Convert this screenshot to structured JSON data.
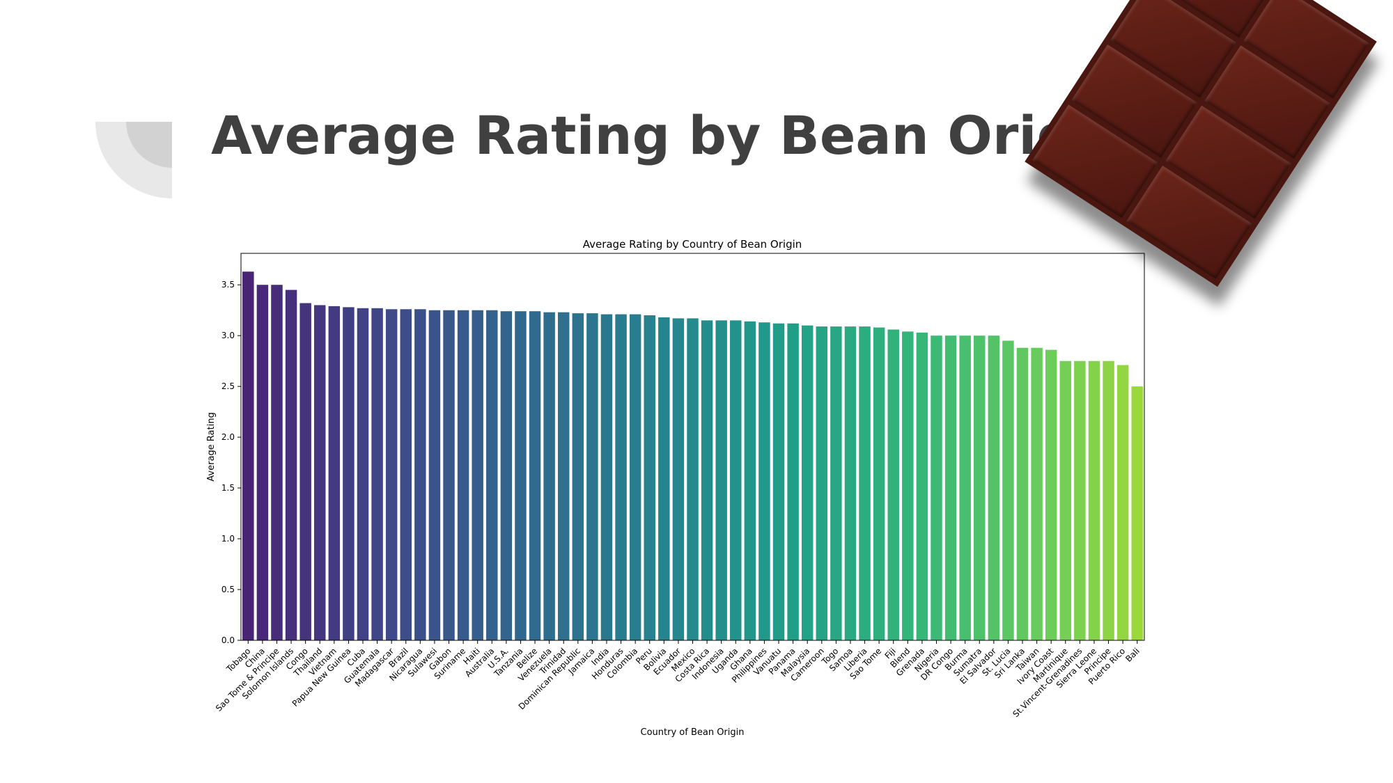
{
  "slide": {
    "title": "Average Rating by Bean Origin"
  },
  "chart_data": {
    "type": "bar",
    "title": "Average Rating by Country of Bean Origin",
    "xlabel": "Country of Bean Origin",
    "ylabel": "Average Rating",
    "ylim": [
      0,
      3.81
    ],
    "yticks": [
      "0.0",
      "0.5",
      "1.0",
      "1.5",
      "2.0",
      "2.5",
      "3.0",
      "3.5"
    ],
    "palette": "viridis",
    "categories": [
      "Tobago",
      "China",
      "Sao Tome & Principe",
      "Solomon Islands",
      "Congo",
      "Thailand",
      "Vietnam",
      "Papua New Guinea",
      "Cuba",
      "Guatemala",
      "Madagascar",
      "Brazil",
      "Nicaragua",
      "Sulawesi",
      "Gabon",
      "Suriname",
      "Haiti",
      "Australia",
      "U.S.A.",
      "Tanzania",
      "Belize",
      "Venezuela",
      "Trinidad",
      "Dominican Republic",
      "Jamaica",
      "India",
      "Honduras",
      "Colombia",
      "Peru",
      "Bolivia",
      "Ecuador",
      "Mexico",
      "Costa Rica",
      "Indonesia",
      "Uganda",
      "Ghana",
      "Philippines",
      "Vanuatu",
      "Panama",
      "Malaysia",
      "Cameroon",
      "Togo",
      "Samoa",
      "Liberia",
      "Sao Tome",
      "Fiji",
      "Blend",
      "Grenada",
      "Nigeria",
      "DR Congo",
      "Burma",
      "Sumatra",
      "El Salvador",
      "St. Lucia",
      "Sri Lanka",
      "Taiwan",
      "Ivory Coast",
      "Martinique",
      "St.Vincent-Grenadines",
      "Sierra Leone",
      "Principe",
      "Puerto Rico",
      "Bali"
    ],
    "values": [
      3.63,
      3.5,
      3.5,
      3.45,
      3.32,
      3.3,
      3.29,
      3.28,
      3.27,
      3.27,
      3.26,
      3.26,
      3.26,
      3.25,
      3.25,
      3.25,
      3.25,
      3.25,
      3.24,
      3.24,
      3.24,
      3.23,
      3.23,
      3.22,
      3.22,
      3.21,
      3.21,
      3.21,
      3.2,
      3.18,
      3.17,
      3.17,
      3.15,
      3.15,
      3.15,
      3.14,
      3.13,
      3.12,
      3.12,
      3.1,
      3.09,
      3.09,
      3.09,
      3.09,
      3.08,
      3.06,
      3.04,
      3.03,
      3.0,
      3.0,
      3.0,
      3.0,
      3.0,
      2.95,
      2.88,
      2.88,
      2.86,
      2.75,
      2.75,
      2.75,
      2.75,
      2.71,
      2.5
    ]
  }
}
